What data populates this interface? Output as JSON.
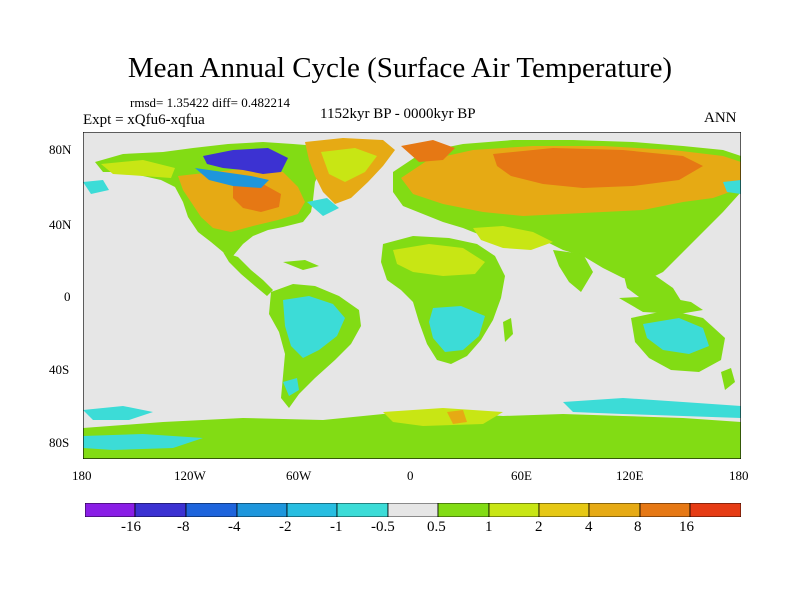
{
  "title": "Mean Annual Cycle (Surface Air Temperature)",
  "stats": "rmsd= 1.35422 diff= 0.482214",
  "experiment": "Expt = xQfu6-xqfua",
  "period": "1152kyr BP - 0000kyr BP",
  "season": "ANN",
  "axes": {
    "x_ticks": [
      "180",
      "120W",
      "60W",
      "0",
      "60E",
      "120E",
      "180"
    ],
    "y_ticks": [
      "80N",
      "40N",
      "0",
      "40S",
      "80S"
    ]
  },
  "colorbar": {
    "colors": [
      "#8a1ee6",
      "#3c32d2",
      "#1e64dc",
      "#1e96dc",
      "#28bee1",
      "#3cdcd7",
      "#e6e6e6",
      "#82dc14",
      "#c8e614",
      "#e6c814",
      "#e6aa14",
      "#e67814",
      "#e63c14"
    ],
    "labels": [
      "-16",
      "-8",
      "-4",
      "-2",
      "-1",
      "-0.5",
      "0.5",
      "1",
      "2",
      "4",
      "8",
      "16"
    ]
  },
  "legend_colors": {
    "neutral": "#e6e6e6",
    "light_warm": "#82dc14",
    "warm": "#e6aa14",
    "hot": "#e67814",
    "cool": "#3cdcd7",
    "cold": "#1e64dc"
  }
}
